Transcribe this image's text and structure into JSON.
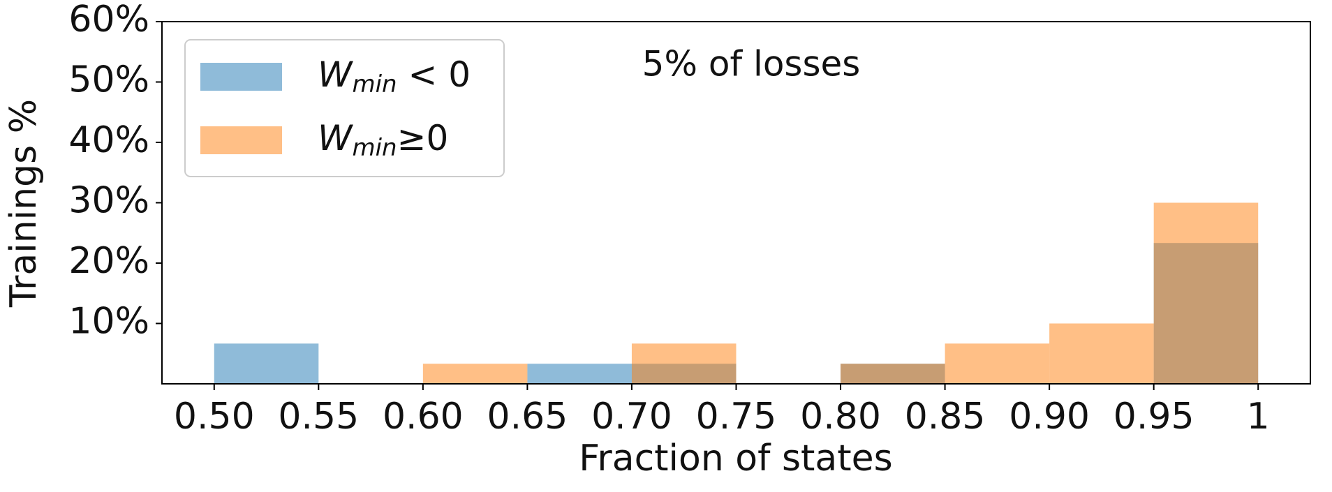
{
  "chart_data": {
    "type": "histogram",
    "annotation": "5% of losses",
    "xlabel": "Fraction of states",
    "ylabel": "Trainings %",
    "bins": [
      0.5,
      0.55,
      0.6,
      0.65,
      0.7,
      0.75,
      0.8,
      0.85,
      0.9,
      0.95,
      1.0
    ],
    "series": [
      {
        "name": "Wmin < 0",
        "color": "#1f77b4",
        "values": [
          6.67,
          0,
          0,
          3.33,
          3.33,
          0,
          3.33,
          0,
          0,
          23.33
        ]
      },
      {
        "name": "Wmin≥0",
        "color": "#ff7f0e",
        "values": [
          0,
          0,
          3.33,
          0,
          6.67,
          0,
          3.33,
          6.67,
          10,
          30
        ]
      }
    ],
    "xlim": [
      0.475,
      1.025
    ],
    "ylim": [
      0,
      60
    ],
    "xticks": [
      {
        "value": 0.5,
        "label": "0.50"
      },
      {
        "value": 0.55,
        "label": "0.55"
      },
      {
        "value": 0.6,
        "label": "0.60"
      },
      {
        "value": 0.65,
        "label": "0.65"
      },
      {
        "value": 0.7,
        "label": "0.70"
      },
      {
        "value": 0.75,
        "label": "0.75"
      },
      {
        "value": 0.8,
        "label": "0.80"
      },
      {
        "value": 0.85,
        "label": "0.85"
      },
      {
        "value": 0.9,
        "label": "0.90"
      },
      {
        "value": 0.95,
        "label": "0.95"
      },
      1
    ],
    "yticks": [
      {
        "value": 10,
        "label": "10%"
      },
      {
        "value": 20,
        "label": "20%"
      },
      {
        "value": 30,
        "label": "30%"
      },
      {
        "value": 40,
        "label": "40%"
      },
      {
        "value": 50,
        "label": "50%"
      },
      {
        "value": 60,
        "label": "60%"
      }
    ],
    "legend": "upper left"
  }
}
